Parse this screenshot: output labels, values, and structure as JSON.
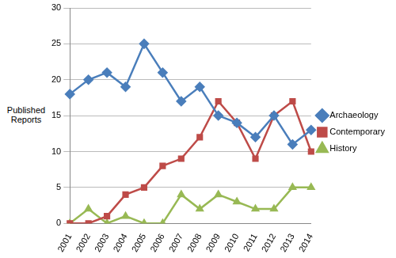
{
  "chart_data": {
    "type": "line",
    "y_label": "Published Reports",
    "categories": [
      "2001",
      "2002",
      "2003",
      "2004",
      "2005",
      "2006",
      "2007",
      "2008",
      "2009",
      "2010",
      "2011",
      "2012",
      "2013",
      "2014"
    ],
    "series": [
      {
        "name": "Archaeology",
        "color": "#4a7ebb",
        "marker": "diamond",
        "values": [
          18,
          20,
          21,
          19,
          25,
          21,
          17,
          19,
          15,
          14,
          12,
          15,
          11,
          13
        ]
      },
      {
        "name": "Contemporary",
        "color": "#be4b48",
        "marker": "square",
        "values": [
          0,
          0,
          1,
          4,
          5,
          8,
          9,
          12,
          17,
          14,
          9,
          15,
          17,
          10
        ]
      },
      {
        "name": "History",
        "color": "#98b954",
        "marker": "triangle",
        "values": [
          0,
          2,
          0,
          1,
          0,
          0,
          4,
          2,
          4,
          3,
          2,
          2,
          5,
          5
        ]
      }
    ],
    "ylim": [
      0,
      30
    ],
    "yticks": [
      0,
      5,
      10,
      15,
      20,
      25,
      30
    ],
    "grid": true,
    "legend": "right"
  }
}
